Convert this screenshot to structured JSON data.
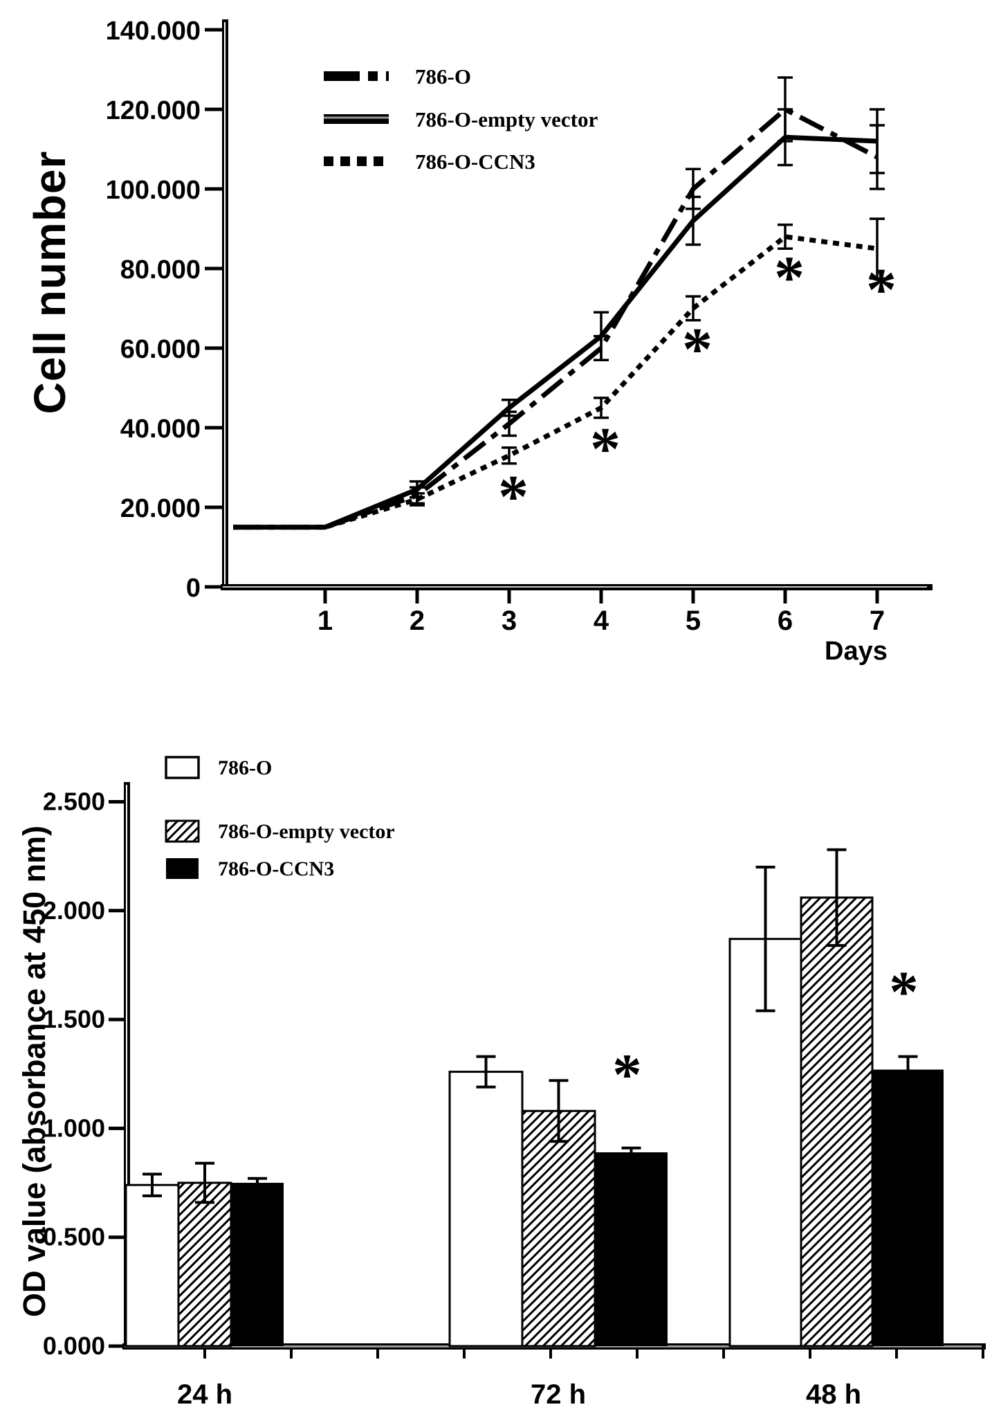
{
  "chart_data": [
    {
      "type": "line",
      "title": "",
      "ylabel": "Cell number",
      "xlabel": "Days",
      "x": [
        0,
        1,
        2,
        3,
        4,
        5,
        6,
        7
      ],
      "x_tick_labels": [
        "1",
        "2",
        "3",
        "4",
        "5",
        "6",
        "7"
      ],
      "y_tick_labels": [
        "0",
        "20.000",
        "40.000",
        "60.000",
        "80.000",
        "100.000",
        "120.000",
        "140.000"
      ],
      "ylim": [
        0,
        140000
      ],
      "grid": false,
      "legend_position": "upper-left-inside",
      "series": [
        {
          "name": "786-O",
          "line_style": "dash-dot",
          "values": [
            15000,
            15000,
            23000,
            41000,
            60000,
            100000,
            120000,
            108000
          ],
          "errors": [
            0,
            0,
            2000,
            3000,
            3000,
            5000,
            8000,
            8000
          ]
        },
        {
          "name": "786-O-empty vector",
          "line_style": "solid",
          "values": [
            15000,
            15000,
            24500,
            45000,
            63000,
            92000,
            113000,
            112000
          ],
          "errors": [
            0,
            0,
            2000,
            2000,
            6000,
            6000,
            7000,
            8000
          ]
        },
        {
          "name": "786-O-CCN3",
          "line_style": "dotted",
          "values": [
            15000,
            15000,
            22000,
            33000,
            45000,
            70000,
            88000,
            85000
          ],
          "errors": [
            0,
            0,
            1500,
            2000,
            2500,
            3000,
            3000,
            7500
          ]
        }
      ],
      "annotations": {
        "symbol": "*",
        "series": "786-O-CCN3",
        "x": [
          3,
          4,
          5,
          6,
          7
        ]
      }
    },
    {
      "type": "bar",
      "title": "",
      "ylabel": "OD value  (absorbance at 450 nm)",
      "categories": [
        "24 h",
        "72 h",
        "48 h"
      ],
      "y_tick_labels": [
        "0.000",
        "0.500",
        "1.000",
        "1.500",
        "2.000",
        "2.500"
      ],
      "ylim": [
        0,
        2.5
      ],
      "grid": false,
      "legend_position": "upper-left-inside",
      "series": [
        {
          "name": "786-O",
          "fill": "white",
          "values": [
            0.74,
            1.26,
            1.87
          ],
          "errors": [
            0.05,
            0.07,
            0.33
          ]
        },
        {
          "name": "786-O-empty vector",
          "fill": "hatched",
          "values": [
            0.75,
            1.08,
            2.06
          ],
          "errors": [
            0.09,
            0.14,
            0.22
          ]
        },
        {
          "name": "786-O-CCN3",
          "fill": "black",
          "values": [
            0.75,
            0.89,
            1.27
          ],
          "errors": [
            0.02,
            0.02,
            0.06
          ]
        }
      ],
      "annotations": {
        "symbol": "*",
        "series": "786-O-CCN3",
        "categories": [
          "72 h",
          "48 h"
        ]
      }
    }
  ],
  "colors": {
    "ink": "#000000",
    "paper": "#ffffff",
    "axis_inner": "#aaaaaa"
  }
}
